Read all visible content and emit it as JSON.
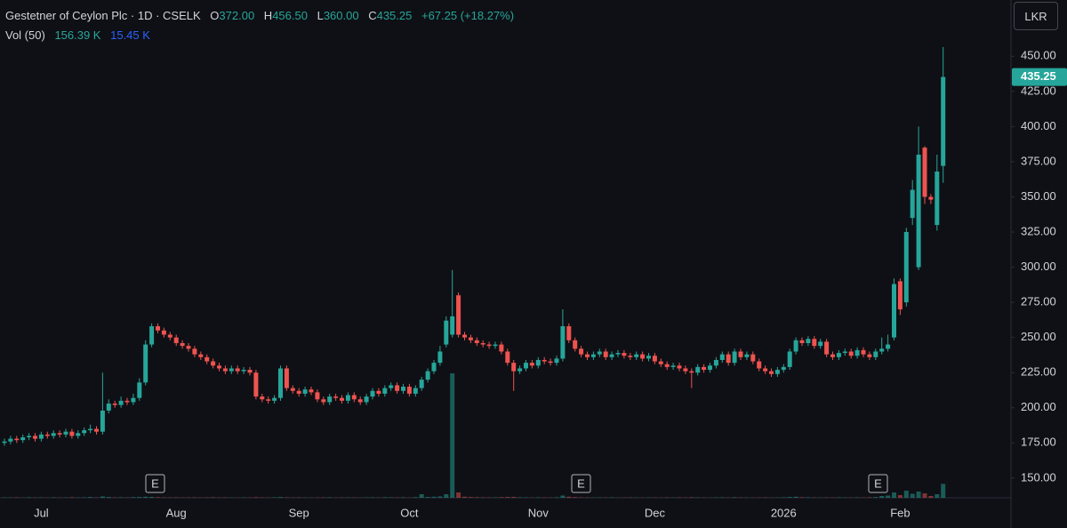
{
  "legend": {
    "title": "Gestetner of Ceylon Plc · 1D · CSELK",
    "ohlc": [
      {
        "label": "O",
        "value": "372.00"
      },
      {
        "label": "H",
        "value": "456.50"
      },
      {
        "label": "L",
        "value": "360.00"
      },
      {
        "label": "C",
        "value": "435.25"
      }
    ],
    "change": "+67.25 (+18.27%)",
    "volume_label": "Vol (50)",
    "volume_value": "156.39 K",
    "volume_ma": "15.45 K"
  },
  "currency_button": "LKR",
  "events": [
    "E",
    "E",
    "E"
  ],
  "chart_data": {
    "type": "candlestick",
    "up_color": "#26a69a",
    "down_color": "#ef5350",
    "grid": false,
    "ylim": [
      136,
      490
    ],
    "yticks": [
      {
        "value": 150,
        "label": "150.00"
      },
      {
        "value": 175,
        "label": "175.00"
      },
      {
        "value": 200,
        "label": "200.00"
      },
      {
        "value": 225,
        "label": "225.00"
      },
      {
        "value": 250,
        "label": "250.00"
      },
      {
        "value": 275,
        "label": "275.00"
      },
      {
        "value": 300,
        "label": "300.00"
      },
      {
        "value": 325,
        "label": "325.00"
      },
      {
        "value": 350,
        "label": "350.00"
      },
      {
        "value": 375,
        "label": "375.00"
      },
      {
        "value": 400,
        "label": "400.00"
      },
      {
        "value": 425,
        "label": "425.00"
      },
      {
        "value": 450,
        "label": "450.00"
      }
    ],
    "categories": [
      null,
      null,
      null,
      null,
      null,
      null,
      "Jul",
      null,
      null,
      null,
      null,
      null,
      null,
      null,
      null,
      null,
      null,
      null,
      null,
      null,
      null,
      null,
      null,
      null,
      null,
      null,
      null,
      null,
      "Aug",
      null,
      null,
      null,
      null,
      null,
      null,
      null,
      null,
      null,
      null,
      null,
      null,
      null,
      null,
      null,
      null,
      null,
      null,
      null,
      "Sep",
      null,
      null,
      null,
      null,
      null,
      null,
      null,
      null,
      null,
      null,
      null,
      null,
      null,
      null,
      null,
      null,
      null,
      "Oct",
      null,
      null,
      null,
      null,
      null,
      null,
      null,
      null,
      null,
      null,
      null,
      null,
      null,
      null,
      null,
      null,
      null,
      null,
      null,
      null,
      "Nov",
      null,
      null,
      null,
      null,
      null,
      null,
      null,
      null,
      null,
      null,
      null,
      null,
      null,
      null,
      null,
      null,
      null,
      null,
      "Dec",
      null,
      null,
      null,
      null,
      null,
      null,
      null,
      null,
      null,
      null,
      null,
      null,
      null,
      null,
      null,
      null,
      null,
      null,
      null,
      null,
      "2026",
      null,
      null,
      null,
      null,
      null,
      null,
      null,
      null,
      null,
      null,
      null,
      null,
      null,
      null,
      null,
      null,
      null,
      null,
      "Feb",
      null,
      null,
      null,
      null,
      null,
      null,
      null
    ],
    "open": [
      175,
      176,
      178,
      177,
      179,
      180,
      178,
      181,
      180,
      182,
      181,
      183,
      180,
      182,
      184,
      185,
      183,
      198,
      203,
      202,
      205,
      204,
      207,
      218,
      245,
      258,
      255,
      252,
      250,
      246,
      244,
      242,
      238,
      236,
      233,
      230,
      228,
      226,
      228,
      226,
      227,
      225,
      208,
      206,
      205,
      207,
      228,
      214,
      212,
      210,
      213,
      211,
      206,
      204,
      208,
      207,
      205,
      209,
      206,
      204,
      208,
      212,
      210,
      214,
      216,
      212,
      215,
      210,
      214,
      220,
      226,
      232,
      245,
      252,
      280,
      252,
      250,
      248,
      246,
      245,
      244,
      245,
      240,
      232,
      226,
      228,
      232,
      230,
      234,
      233,
      232,
      235,
      258,
      248,
      242,
      238,
      236,
      238,
      240,
      236,
      238,
      239,
      237,
      236,
      238,
      235,
      237,
      233,
      231,
      229,
      230,
      228,
      226,
      225,
      229,
      227,
      230,
      234,
      238,
      232,
      240,
      236,
      238,
      233,
      228,
      226,
      224,
      227,
      229,
      240,
      248,
      246,
      249,
      244,
      247,
      238,
      236,
      239,
      240,
      237,
      241,
      238,
      236,
      240,
      242,
      250,
      290,
      275,
      335,
      300,
      385,
      350,
      330,
      372
    ],
    "high": [
      178,
      180,
      180,
      181,
      182,
      182,
      183,
      183,
      184,
      184,
      185,
      185,
      184,
      186,
      188,
      187,
      225,
      206,
      205,
      208,
      207,
      210,
      221,
      248,
      260,
      260,
      257,
      254,
      252,
      248,
      246,
      244,
      240,
      238,
      235,
      232,
      230,
      230,
      230,
      229,
      229,
      227,
      210,
      208,
      209,
      230,
      230,
      216,
      214,
      215,
      215,
      213,
      208,
      210,
      210,
      209,
      211,
      211,
      208,
      210,
      214,
      214,
      216,
      218,
      218,
      217,
      217,
      216,
      222,
      228,
      234,
      244,
      265,
      298,
      282,
      254,
      252,
      250,
      248,
      247,
      247,
      247,
      242,
      234,
      230,
      234,
      234,
      236,
      236,
      235,
      237,
      270,
      260,
      250,
      244,
      240,
      240,
      242,
      242,
      240,
      241,
      241,
      239,
      240,
      240,
      239,
      239,
      235,
      233,
      232,
      232,
      230,
      228,
      231,
      231,
      232,
      236,
      240,
      240,
      242,
      242,
      240,
      240,
      235,
      230,
      228,
      229,
      231,
      242,
      250,
      250,
      251,
      251,
      249,
      249,
      240,
      241,
      242,
      242,
      243,
      243,
      240,
      242,
      250,
      252,
      292,
      292,
      328,
      362,
      400,
      386,
      352,
      380,
      456.5
    ],
    "low": [
      173,
      174,
      175,
      175,
      177,
      176,
      176,
      178,
      178,
      179,
      179,
      178,
      178,
      180,
      182,
      181,
      181,
      196,
      200,
      200,
      202,
      202,
      205,
      216,
      243,
      253,
      250,
      248,
      244,
      242,
      240,
      236,
      234,
      231,
      228,
      226,
      224,
      224,
      224,
      224,
      223,
      206,
      204,
      203,
      203,
      205,
      212,
      210,
      208,
      208,
      209,
      204,
      202,
      202,
      205,
      203,
      203,
      204,
      202,
      202,
      206,
      208,
      208,
      212,
      210,
      210,
      208,
      208,
      212,
      218,
      224,
      230,
      243,
      250,
      250,
      248,
      246,
      244,
      243,
      242,
      242,
      238,
      230,
      212,
      224,
      226,
      228,
      228,
      231,
      230,
      230,
      233,
      246,
      240,
      236,
      234,
      234,
      236,
      234,
      234,
      236,
      235,
      234,
      234,
      233,
      233,
      231,
      229,
      227,
      227,
      226,
      224,
      214,
      223,
      225,
      225,
      228,
      232,
      230,
      230,
      234,
      234,
      231,
      226,
      224,
      222,
      222,
      225,
      227,
      238,
      244,
      244,
      242,
      242,
      236,
      234,
      234,
      237,
      235,
      235,
      236,
      234,
      234,
      238,
      240,
      248,
      266,
      272,
      330,
      298,
      345,
      345,
      326,
      360
    ],
    "close": [
      176,
      178,
      177,
      179,
      180,
      178,
      181,
      180,
      182,
      181,
      183,
      180,
      182,
      184,
      185,
      183,
      198,
      203,
      202,
      205,
      204,
      207,
      218,
      245,
      258,
      255,
      252,
      250,
      246,
      244,
      242,
      238,
      236,
      233,
      230,
      228,
      226,
      228,
      226,
      227,
      225,
      208,
      206,
      205,
      207,
      228,
      214,
      212,
      210,
      213,
      211,
      206,
      204,
      208,
      207,
      205,
      209,
      206,
      204,
      208,
      212,
      210,
      214,
      216,
      212,
      215,
      210,
      214,
      220,
      226,
      232,
      240,
      262,
      265,
      252,
      250,
      248,
      246,
      245,
      244,
      245,
      240,
      232,
      226,
      228,
      232,
      230,
      234,
      233,
      232,
      235,
      258,
      248,
      242,
      238,
      236,
      238,
      240,
      236,
      238,
      239,
      237,
      236,
      238,
      235,
      237,
      233,
      231,
      229,
      230,
      228,
      226,
      225,
      229,
      227,
      230,
      234,
      238,
      232,
      240,
      236,
      238,
      233,
      228,
      226,
      224,
      227,
      229,
      240,
      248,
      246,
      249,
      244,
      247,
      238,
      236,
      239,
      240,
      237,
      241,
      238,
      236,
      240,
      242,
      245,
      288,
      270,
      325,
      355,
      380,
      350,
      348,
      368,
      435.25
    ],
    "volume": [
      4000,
      3000,
      5000,
      2000,
      6000,
      3000,
      4000,
      2000,
      5000,
      3000,
      4000,
      6000,
      3000,
      5000,
      8000,
      4000,
      15000,
      9000,
      5000,
      6000,
      4000,
      7000,
      9000,
      12000,
      10000,
      6000,
      5000,
      4000,
      5000,
      3000,
      4000,
      5000,
      3000,
      4000,
      6000,
      3000,
      4000,
      3000,
      2000,
      4000,
      3000,
      7000,
      4000,
      3000,
      5000,
      8000,
      5000,
      3000,
      4000,
      3000,
      2000,
      3000,
      4000,
      5000,
      2000,
      3000,
      4000,
      3000,
      2000,
      4000,
      5000,
      3000,
      6000,
      5000,
      4000,
      6000,
      3000,
      7000,
      40000,
      9000,
      12000,
      15000,
      40000,
      1400000,
      60000,
      12000,
      8000,
      6000,
      5000,
      4000,
      5000,
      7000,
      9000,
      10000,
      5000,
      4000,
      3000,
      5000,
      4000,
      3000,
      6000,
      25000,
      12000,
      8000,
      5000,
      4000,
      3000,
      4000,
      3000,
      5000,
      2000,
      3000,
      4000,
      3000,
      2000,
      4000,
      3000,
      2000,
      4000,
      3000,
      5000,
      3000,
      6000,
      4000,
      3000,
      2000,
      4000,
      5000,
      3000,
      6000,
      4000,
      3000,
      2000,
      3000,
      4000,
      2000,
      3000,
      5000,
      9000,
      12000,
      6000,
      5000,
      4000,
      3000,
      4000,
      3000,
      5000,
      4000,
      3000,
      5000,
      4000,
      6000,
      8000,
      20000,
      25000,
      60000,
      30000,
      80000,
      45000,
      70000,
      50000,
      20000,
      40000,
      156390
    ]
  }
}
